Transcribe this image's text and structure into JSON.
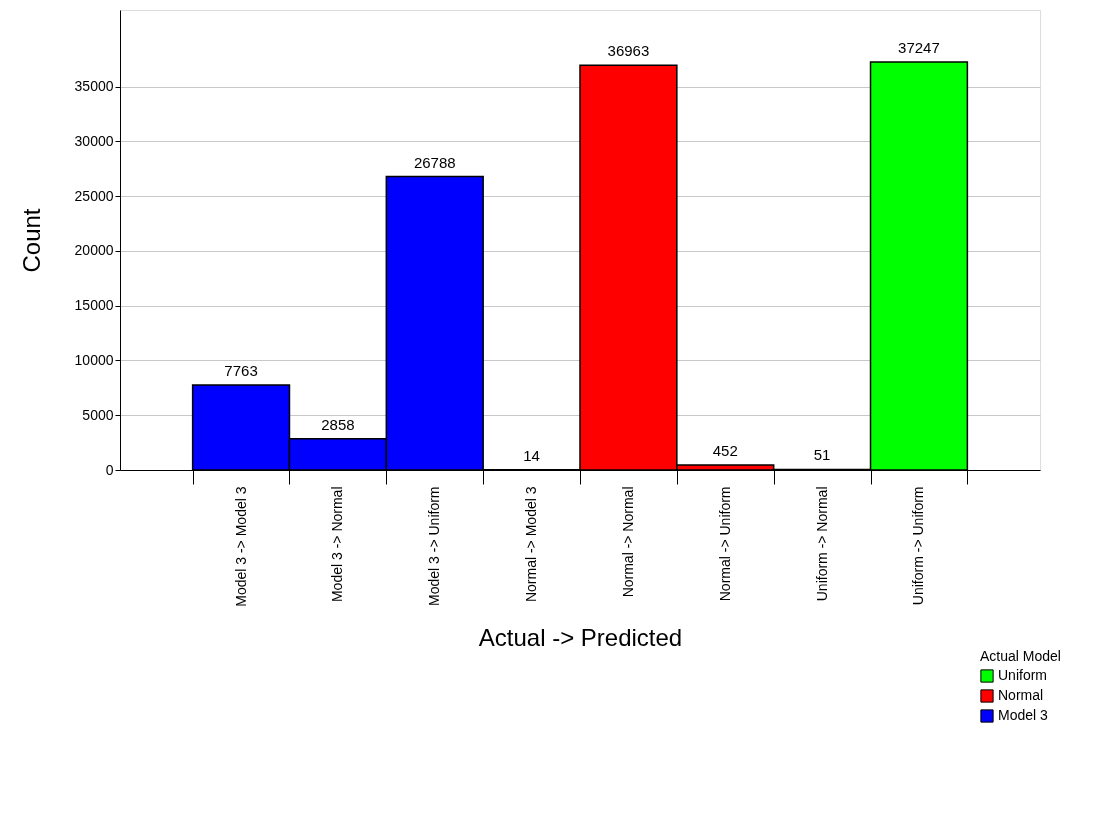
{
  "chart_data": {
    "type": "bar",
    "xlabel": "Actual -> Predicted",
    "ylabel": "Count",
    "legend_title": "Actual Model",
    "categories": [
      "Model 3 -> Model 3",
      "Model 3 -> Normal",
      "Model 3 -> Uniform",
      "Normal -> Model 3",
      "Normal -> Normal",
      "Normal -> Uniform",
      "Uniform -> Normal",
      "Uniform -> Uniform"
    ],
    "series": [
      {
        "name": "Uniform",
        "color": "#00ff00",
        "values": [
          null,
          null,
          null,
          null,
          null,
          null,
          51,
          37247
        ]
      },
      {
        "name": "Normal",
        "color": "#ff0000",
        "values": [
          null,
          null,
          null,
          14,
          36963,
          452,
          null,
          null
        ]
      },
      {
        "name": "Model 3",
        "color": "#0000ff",
        "values": [
          7763,
          2858,
          26788,
          null,
          null,
          null,
          null,
          null
        ]
      }
    ],
    "ylim": [
      0,
      42000
    ],
    "yticks": [
      0,
      5000,
      10000,
      15000,
      20000,
      25000,
      30000,
      35000
    ],
    "grid": "y",
    "legend": "bottom right",
    "data_labels": true
  }
}
